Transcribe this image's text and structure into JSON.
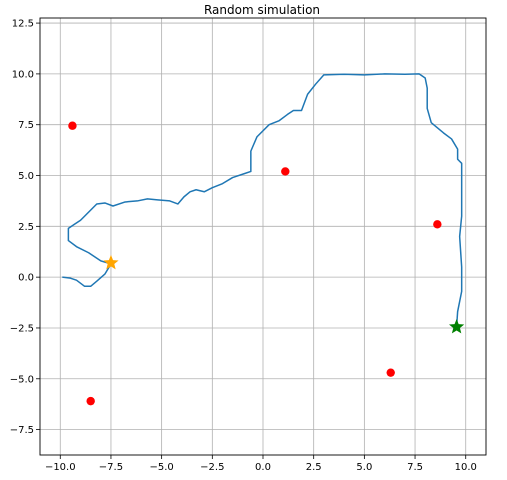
{
  "chart_data": {
    "type": "line",
    "title": "Random simulation",
    "xlabel": "",
    "ylabel": "",
    "xlim": [
      -11,
      11
    ],
    "ylim": [
      -8.75,
      12.75
    ],
    "grid": true,
    "xticks": [
      -10.0,
      -7.5,
      -5.0,
      -2.5,
      0.0,
      2.5,
      5.0,
      7.5,
      10.0
    ],
    "yticks": [
      -7.5,
      -5.0,
      -2.5,
      0.0,
      2.5,
      5.0,
      7.5,
      10.0,
      12.5
    ],
    "xtick_labels": [
      "−10.0",
      "−7.5",
      "−5.0",
      "−2.5",
      "0.0",
      "2.5",
      "5.0",
      "7.5",
      "10.0"
    ],
    "ytick_labels": [
      "−7.5",
      "−5.0",
      "−2.5",
      "0.0",
      "2.5",
      "5.0",
      "7.5",
      "10.0",
      "12.5"
    ],
    "series": [
      {
        "color": "#1f77b4",
        "points": [
          [
            -9.9,
            0.0
          ],
          [
            -9.5,
            -0.05
          ],
          [
            -9.2,
            -0.15
          ],
          [
            -8.8,
            -0.45
          ],
          [
            -8.5,
            -0.45
          ],
          [
            -8.2,
            -0.2
          ],
          [
            -7.8,
            0.15
          ],
          [
            -7.5,
            0.65
          ],
          [
            -8.0,
            0.8
          ],
          [
            -8.6,
            1.2
          ],
          [
            -9.2,
            1.5
          ],
          [
            -9.6,
            1.8
          ],
          [
            -9.6,
            2.4
          ],
          [
            -9.3,
            2.6
          ],
          [
            -9.0,
            2.8
          ],
          [
            -8.6,
            3.2
          ],
          [
            -8.2,
            3.6
          ],
          [
            -7.8,
            3.65
          ],
          [
            -7.4,
            3.5
          ],
          [
            -6.8,
            3.7
          ],
          [
            -6.2,
            3.75
          ],
          [
            -5.7,
            3.85
          ],
          [
            -5.2,
            3.8
          ],
          [
            -4.6,
            3.75
          ],
          [
            -4.2,
            3.6
          ],
          [
            -3.9,
            3.95
          ],
          [
            -3.6,
            4.2
          ],
          [
            -3.3,
            4.3
          ],
          [
            -2.9,
            4.2
          ],
          [
            -2.5,
            4.4
          ],
          [
            -2.0,
            4.6
          ],
          [
            -1.5,
            4.9
          ],
          [
            -0.9,
            5.1
          ],
          [
            -0.6,
            5.2
          ],
          [
            -0.6,
            6.2
          ],
          [
            -0.3,
            6.9
          ],
          [
            0.3,
            7.5
          ],
          [
            0.8,
            7.7
          ],
          [
            1.2,
            8.0
          ],
          [
            1.5,
            8.2
          ],
          [
            1.9,
            8.2
          ],
          [
            2.2,
            9.0
          ],
          [
            2.6,
            9.5
          ],
          [
            3.0,
            9.95
          ],
          [
            4.0,
            9.98
          ],
          [
            5.0,
            9.95
          ],
          [
            6.0,
            10.0
          ],
          [
            7.0,
            9.98
          ],
          [
            7.7,
            10.0
          ],
          [
            8.0,
            9.8
          ],
          [
            8.1,
            9.3
          ],
          [
            8.1,
            8.3
          ],
          [
            8.3,
            7.6
          ],
          [
            8.9,
            7.1
          ],
          [
            9.3,
            6.8
          ],
          [
            9.6,
            6.3
          ],
          [
            9.6,
            5.8
          ],
          [
            9.8,
            5.6
          ],
          [
            9.8,
            3.0
          ],
          [
            9.7,
            2.0
          ],
          [
            9.8,
            0.5
          ],
          [
            9.8,
            -0.7
          ],
          [
            9.6,
            -1.7
          ],
          [
            9.55,
            -2.45
          ]
        ]
      }
    ],
    "markers": [
      {
        "name": "red-dot",
        "color": "#ff0000",
        "shape": "circle",
        "x": -9.4,
        "y": 7.45
      },
      {
        "name": "red-dot",
        "color": "#ff0000",
        "shape": "circle",
        "x": 1.1,
        "y": 5.2
      },
      {
        "name": "red-dot",
        "color": "#ff0000",
        "shape": "circle",
        "x": 8.6,
        "y": 2.6
      },
      {
        "name": "red-dot",
        "color": "#ff0000",
        "shape": "circle",
        "x": 6.3,
        "y": -4.7
      },
      {
        "name": "red-dot",
        "color": "#ff0000",
        "shape": "circle",
        "x": -8.5,
        "y": -6.1
      },
      {
        "name": "orange-star",
        "color": "#ffa500",
        "shape": "star",
        "x": -7.5,
        "y": 0.7
      },
      {
        "name": "green-star",
        "color": "#008000",
        "shape": "star",
        "x": 9.55,
        "y": -2.45
      }
    ]
  }
}
